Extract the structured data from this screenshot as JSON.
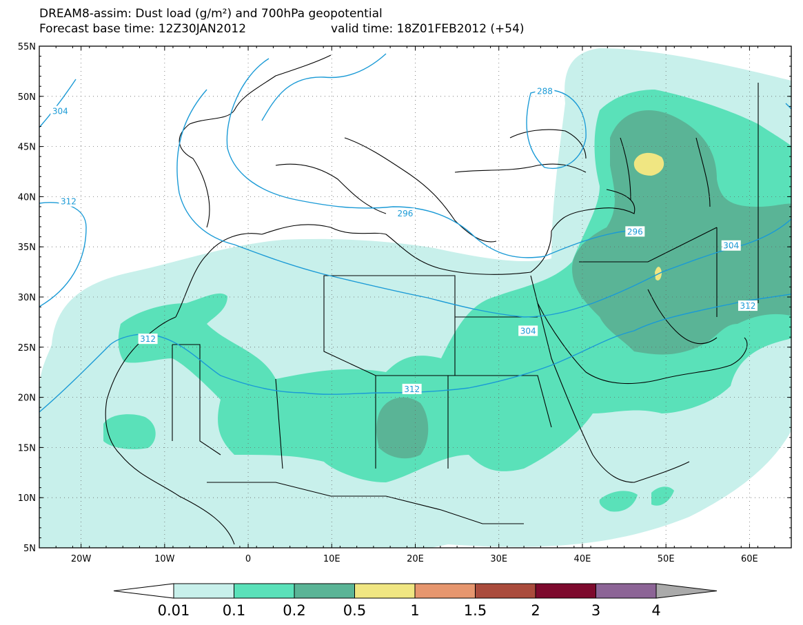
{
  "title": {
    "line1": "DREAM8-assim: Dust load (g/m²) and 700hPa geopotential",
    "line2_base": "Forecast base time: 12Z30JAN2012",
    "line2_valid": "valid time: 18Z01FEB2012 (+54)"
  },
  "map": {
    "lon_range": [
      -25,
      65
    ],
    "lat_range": [
      5,
      55
    ],
    "lon_ticks": [
      {
        "value": -20,
        "label": "20W"
      },
      {
        "value": -10,
        "label": "10W"
      },
      {
        "value": 0,
        "label": "0"
      },
      {
        "value": 10,
        "label": "10E"
      },
      {
        "value": 20,
        "label": "20E"
      },
      {
        "value": 30,
        "label": "30E"
      },
      {
        "value": 40,
        "label": "40E"
      },
      {
        "value": 50,
        "label": "50E"
      },
      {
        "value": 60,
        "label": "60E"
      }
    ],
    "lat_ticks": [
      {
        "value": 55,
        "label": "55N"
      },
      {
        "value": 50,
        "label": "50N"
      },
      {
        "value": 45,
        "label": "45N"
      },
      {
        "value": 40,
        "label": "40N"
      },
      {
        "value": 35,
        "label": "35N"
      },
      {
        "value": 30,
        "label": "30N"
      },
      {
        "value": 25,
        "label": "25N"
      },
      {
        "value": 20,
        "label": "20N"
      },
      {
        "value": 15,
        "label": "15N"
      },
      {
        "value": 10,
        "label": "10N"
      },
      {
        "value": 5,
        "label": "5N"
      }
    ],
    "contour_labels": [
      {
        "text": "304",
        "lon": -22.5,
        "lat": 48.5
      },
      {
        "text": "312",
        "lon": -21.5,
        "lat": 39.5
      },
      {
        "text": "288",
        "lon": 35.5,
        "lat": 50.5
      },
      {
        "text": "296",
        "lon": 18.8,
        "lat": 38.3
      },
      {
        "text": "296",
        "lon": 46.3,
        "lat": 36.5
      },
      {
        "text": "304",
        "lon": 57.8,
        "lat": 35.1
      },
      {
        "text": "312",
        "lon": 59.8,
        "lat": 29.1
      },
      {
        "text": "304",
        "lon": 33.5,
        "lat": 26.6
      },
      {
        "text": "312",
        "lon": -12.0,
        "lat": 25.8
      },
      {
        "text": "312",
        "lon": 19.6,
        "lat": 20.8
      }
    ]
  },
  "colorbar": {
    "colors": [
      "#c8f0eb",
      "#5ae1b9",
      "#5ab496",
      "#f0e682",
      "#e6966e",
      "#aa4b3c",
      "#7d0a2d",
      "#8c6496"
    ],
    "under_color": "#ffffff",
    "over_color": "#aaaaaa",
    "labels": [
      "0.01",
      "0.1",
      "0.2",
      "0.5",
      "1",
      "1.5",
      "2",
      "3",
      "4"
    ]
  },
  "colors": {
    "contour": "#1a9ad6",
    "coast": "#000000"
  }
}
